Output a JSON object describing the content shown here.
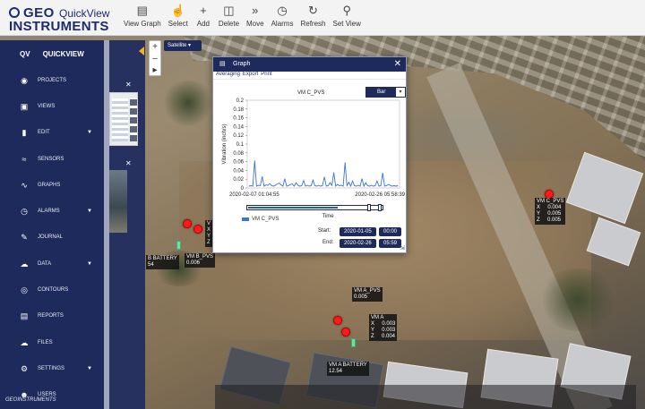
{
  "app": {
    "logo_top": "GEO",
    "logo_product": "QuickView",
    "logo_bottom": "INSTRUMENTS",
    "footer_brand": "GEOINSTRUMENTS"
  },
  "toolbar": {
    "items": [
      {
        "label": "View Graph",
        "icon": "chart-icon"
      },
      {
        "label": "Select",
        "icon": "hand-icon"
      },
      {
        "label": "Add",
        "icon": "plus-icon"
      },
      {
        "label": "Delete",
        "icon": "trash-icon"
      },
      {
        "label": "Move",
        "icon": "double-chevron-icon"
      },
      {
        "label": "Alarms",
        "icon": "alarm-clock-icon"
      },
      {
        "label": "Refresh",
        "icon": "refresh-icon"
      },
      {
        "label": "Set View",
        "icon": "pin-icon"
      }
    ]
  },
  "sidebar": {
    "head_short": "QV",
    "head_label": "QUICKVIEW",
    "items": [
      {
        "label": "PROJECTS",
        "icon": "globe-icon",
        "has_caret": false
      },
      {
        "label": "VIEWS",
        "icon": "image-icon",
        "has_caret": false
      },
      {
        "label": "EDIT",
        "icon": "clipboard-icon",
        "has_caret": true
      },
      {
        "label": "SENSORS",
        "icon": "wifi-icon",
        "has_caret": false
      },
      {
        "label": "GRAPHS",
        "icon": "graph-icon",
        "has_caret": false
      },
      {
        "label": "ALARMS",
        "icon": "alarm-icon",
        "has_caret": true
      },
      {
        "label": "JOURNAL",
        "icon": "journal-icon",
        "has_caret": false
      },
      {
        "label": "DATA",
        "icon": "cloud-upload-icon",
        "has_caret": true
      },
      {
        "label": "CONTOURS",
        "icon": "contours-icon",
        "has_caret": false
      },
      {
        "label": "REPORTS",
        "icon": "report-icon",
        "has_caret": false
      },
      {
        "label": "FILES",
        "icon": "cloud-download-icon",
        "has_caret": false
      },
      {
        "label": "SETTINGS",
        "icon": "gear-icon",
        "has_caret": true
      },
      {
        "label": "USERS",
        "icon": "user-icon",
        "has_caret": false
      }
    ]
  },
  "map": {
    "layer": "Satellite"
  },
  "graph": {
    "window_title": "Graph",
    "menu": [
      "Averaging",
      "Export",
      "Print"
    ],
    "chart_type_label": "Bar",
    "start_label": "Start:",
    "end_label": "End:",
    "start_date": "2020-01-05",
    "start_time": "00:00",
    "end_date": "2020-02-26",
    "end_time": "05:59"
  },
  "chart_data": {
    "type": "line",
    "title": "VM C_PVS",
    "xlabel": "Time",
    "ylabel": "Vibration (inch/s)",
    "ylim": [
      0,
      0.2
    ],
    "yticks": [
      "0",
      "0.02",
      "0.04",
      "0.06",
      "0.08",
      "0.1",
      "0.12",
      "0.14",
      "0.16",
      "0.18",
      "0.2"
    ],
    "x_tick_labels": [
      "2020-02-07 01:04:55",
      "2020-02-26 05:58:39"
    ],
    "legend": "VM C_PVS",
    "series": [
      {
        "name": "VM C_PVS",
        "color": "#3b73d9",
        "values": [
          0.004,
          0.005,
          0.004,
          0.062,
          0.004,
          0.006,
          0.005,
          0.026,
          0.004,
          0.007,
          0.006,
          0.01,
          0.005,
          0.004,
          0.006,
          0.009,
          0.011,
          0.007,
          0.004,
          0.021,
          0.004,
          0.005,
          0.008,
          0.009,
          0.004,
          0.012,
          0.006,
          0.004,
          0.005,
          0.017,
          0.004,
          0.006,
          0.004,
          0.005,
          0.018,
          0.005,
          0.004,
          0.006,
          0.004,
          0.005,
          0.025,
          0.004,
          0.005,
          0.012,
          0.006,
          0.035,
          0.004,
          0.008,
          0.005,
          0.006,
          0.004,
          0.058,
          0.005,
          0.013,
          0.004,
          0.016,
          0.005,
          0.004,
          0.006,
          0.004,
          0.021,
          0.004,
          0.012,
          0.005,
          0.004,
          0.006,
          0.004,
          0.005,
          0.016,
          0.004,
          0.005,
          0.034,
          0.004,
          0.005,
          0.008,
          0.006,
          0.004,
          0.005,
          0.004,
          0.005
        ]
      }
    ]
  },
  "sensors": [
    {
      "name": "VM C",
      "lines": "VM C_PVS\nX     0.004\nY     0.005\nZ     0.005"
    },
    {
      "name": "VM A_PVS",
      "lines": "VM A_PVS\n0.005"
    },
    {
      "name": "VM A",
      "lines": "VM A\nX     0.003\nY     0.003\nZ     0.004"
    },
    {
      "name": "VM A BATTERY",
      "lines": "VM A BATTERY\n12.54"
    },
    {
      "name": "VM B_PVS",
      "lines": "VM B_PVS\n0.006"
    },
    {
      "name": "B BATTERY",
      "lines": "B BATTERY\n54"
    },
    {
      "name": "VM B",
      "lines": "V\nX\nY\nZ"
    }
  ]
}
